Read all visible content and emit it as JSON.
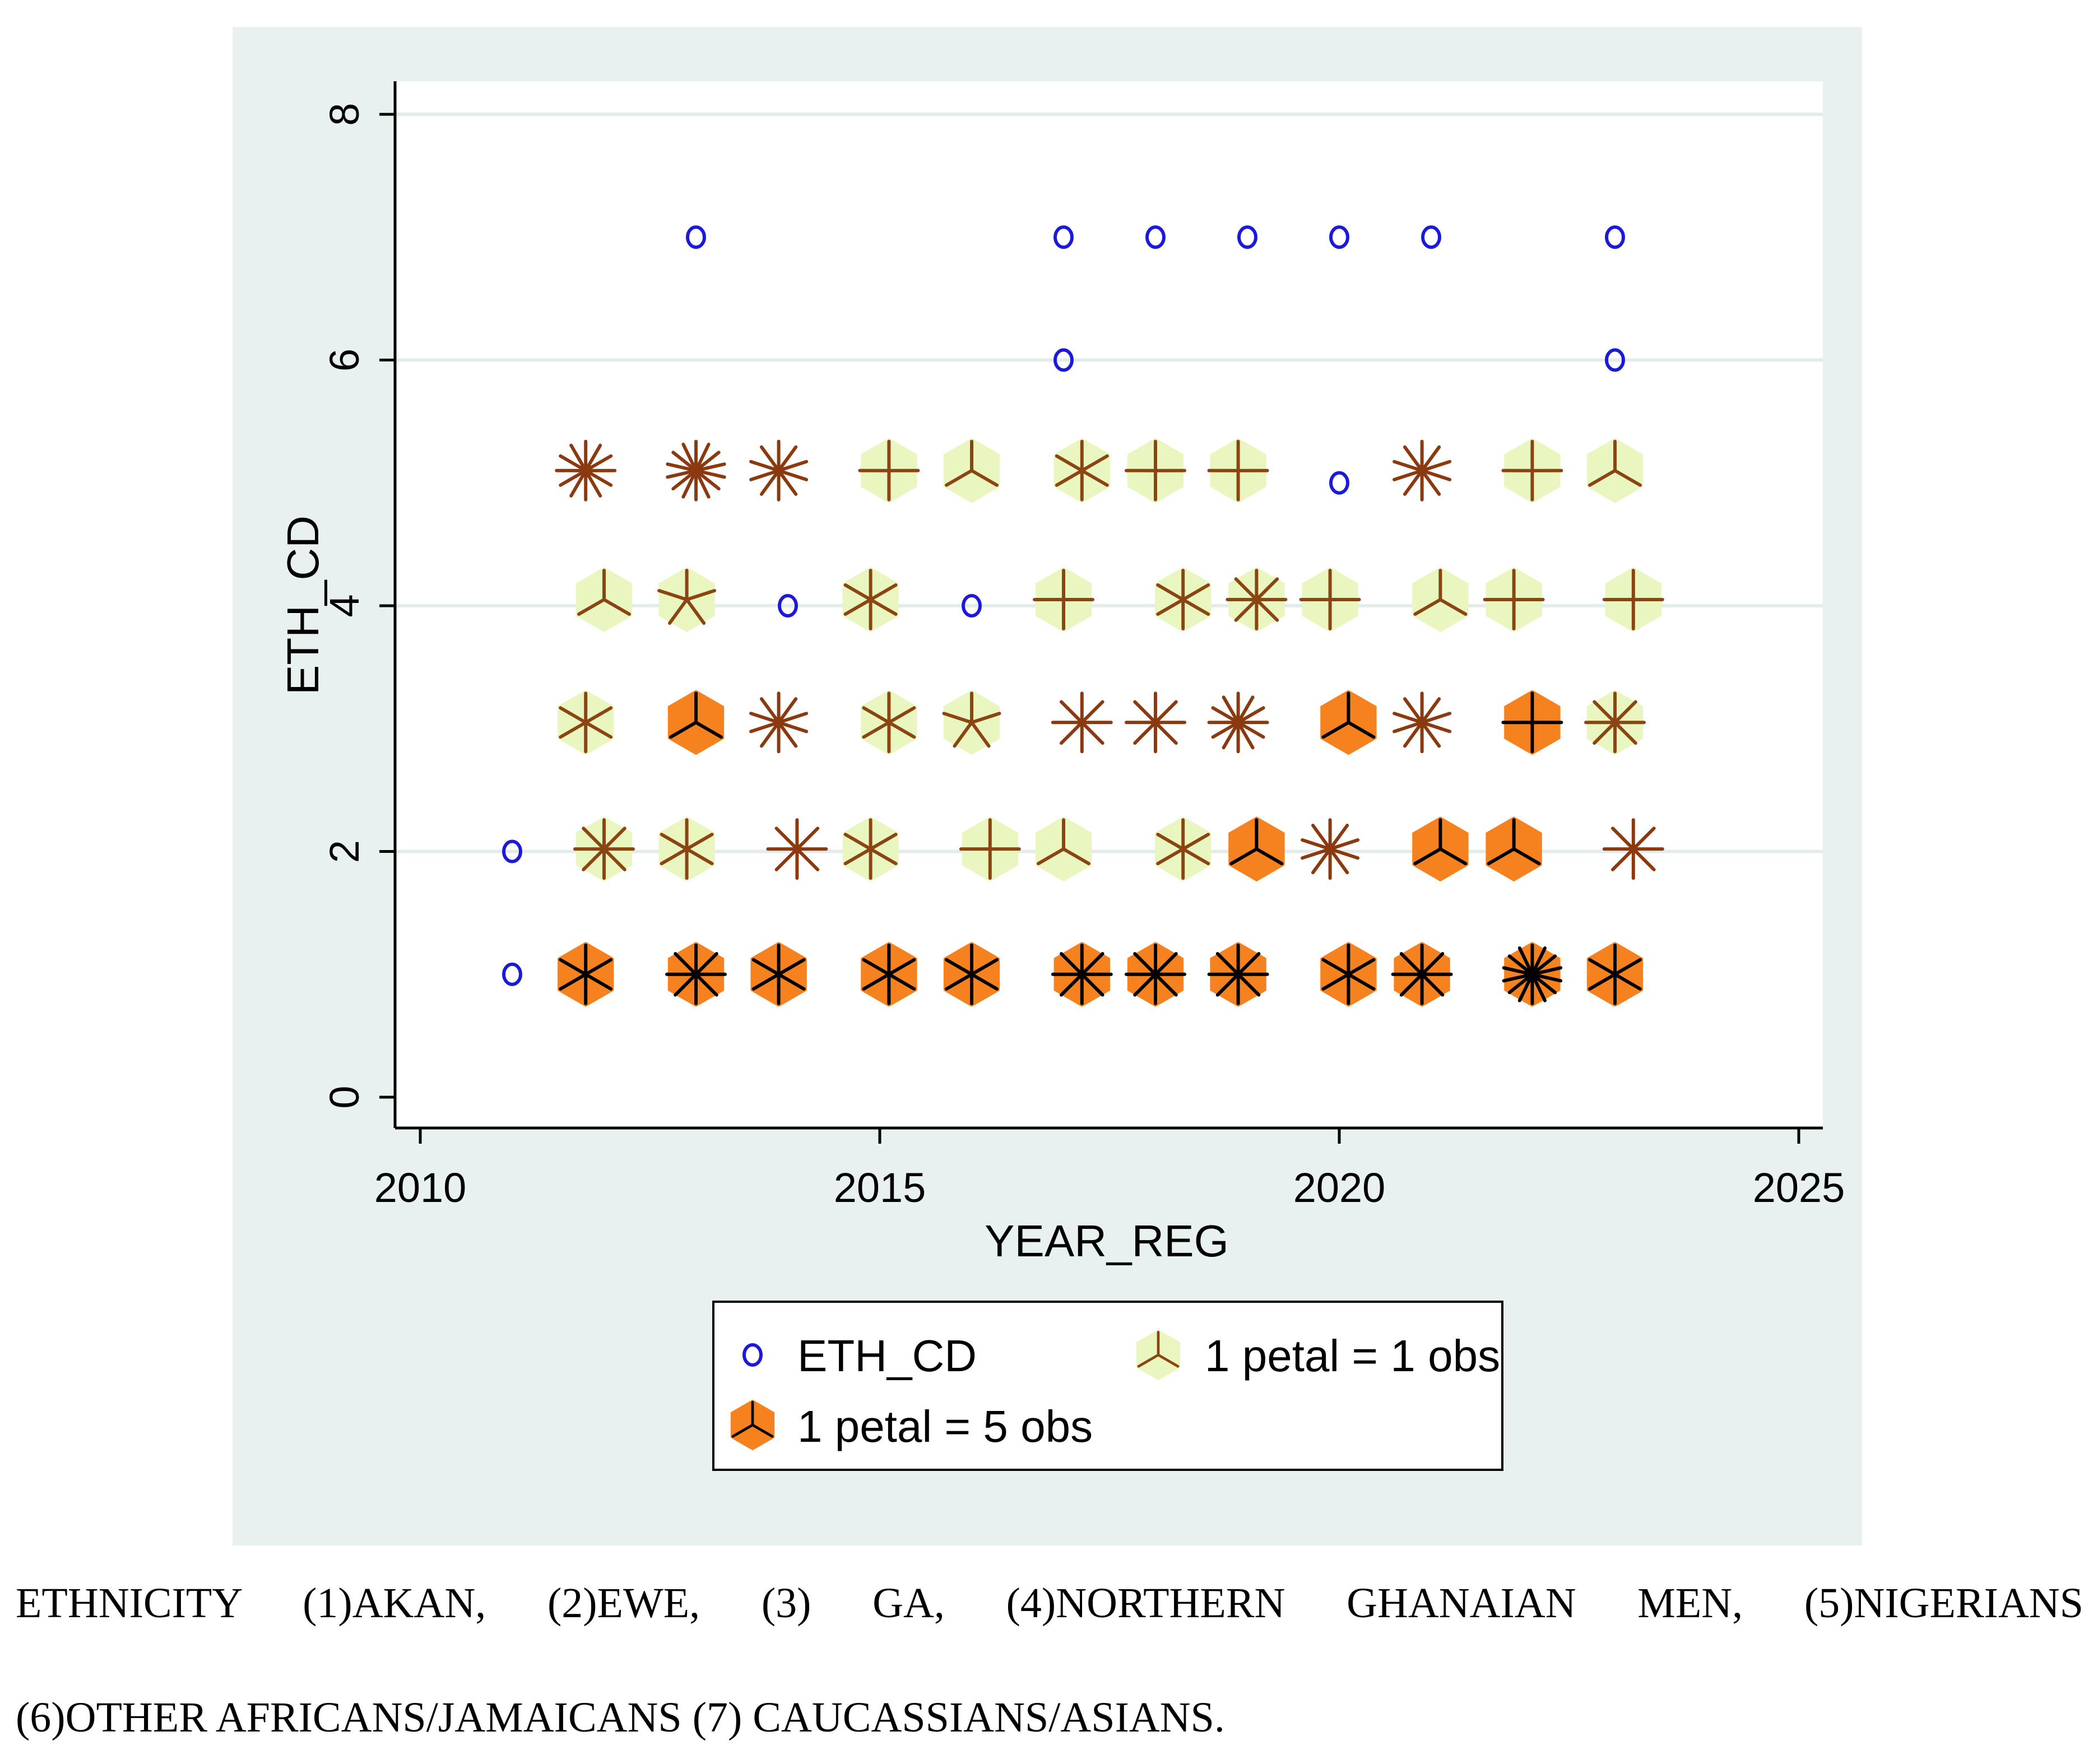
{
  "chart_data": {
    "type": "scatter",
    "subtype": "sunflower",
    "xlabel": "YEAR_REG",
    "ylabel": "ETH_CD",
    "xlim": [
      2010,
      2025
    ],
    "ylim": [
      0,
      8
    ],
    "x_ticks": [
      2010,
      2015,
      2020,
      2025
    ],
    "y_ticks": [
      0,
      2,
      4,
      6,
      8
    ],
    "grid": "horizontal",
    "legend": {
      "placement": "bottom",
      "entries": [
        {
          "key": "points",
          "label": "ETH_CD"
        },
        {
          "key": "light",
          "label": "1 petal = 1 obs"
        },
        {
          "key": "dark",
          "label": "1 petal = 5 obs"
        }
      ]
    },
    "colors": {
      "outer_bg": "#e8f0f0",
      "plot_bg": "#ffffff",
      "grid": "#e3ebeb",
      "point": "#1a1ad8",
      "light_fill": "#eaf6c0",
      "light_petal": "#8b4513",
      "dark_fill": "#f5821f",
      "dark_petal": "#000000",
      "star_petal": "#8b3a0f"
    },
    "points": [
      {
        "x": 2011,
        "y": 1
      },
      {
        "x": 2011,
        "y": 2
      },
      {
        "x": 2013,
        "y": 7
      },
      {
        "x": 2014,
        "y": 4
      },
      {
        "x": 2016,
        "y": 4
      },
      {
        "x": 2017,
        "y": 6
      },
      {
        "x": 2017,
        "y": 7
      },
      {
        "x": 2018,
        "y": 7
      },
      {
        "x": 2019,
        "y": 7
      },
      {
        "x": 2020,
        "y": 5
      },
      {
        "x": 2020,
        "y": 7
      },
      {
        "x": 2021,
        "y": 7
      },
      {
        "x": 2023,
        "y": 6
      },
      {
        "x": 2023,
        "y": 7
      }
    ],
    "sunflowers": [
      {
        "x": 2011.8,
        "y": 5.1,
        "type": "star",
        "petals": 12
      },
      {
        "x": 2013.0,
        "y": 5.1,
        "type": "star",
        "petals": 14
      },
      {
        "x": 2013.9,
        "y": 5.1,
        "type": "star",
        "petals": 10
      },
      {
        "x": 2015.1,
        "y": 5.1,
        "type": "light",
        "petals": 4
      },
      {
        "x": 2016.0,
        "y": 5.1,
        "type": "light",
        "petals": 3
      },
      {
        "x": 2017.2,
        "y": 5.1,
        "type": "light",
        "petals": 6
      },
      {
        "x": 2018.0,
        "y": 5.1,
        "type": "light",
        "petals": 4
      },
      {
        "x": 2018.9,
        "y": 5.1,
        "type": "light",
        "petals": 4
      },
      {
        "x": 2020.9,
        "y": 5.1,
        "type": "star",
        "petals": 10
      },
      {
        "x": 2022.1,
        "y": 5.1,
        "type": "light",
        "petals": 4
      },
      {
        "x": 2023.0,
        "y": 5.1,
        "type": "light",
        "petals": 3
      },
      {
        "x": 2012.0,
        "y": 4.05,
        "type": "light",
        "petals": 3
      },
      {
        "x": 2012.9,
        "y": 4.05,
        "type": "light",
        "petals": 5
      },
      {
        "x": 2014.9,
        "y": 4.05,
        "type": "light",
        "petals": 6
      },
      {
        "x": 2017.0,
        "y": 4.05,
        "type": "light",
        "petals": 4
      },
      {
        "x": 2018.3,
        "y": 4.05,
        "type": "light",
        "petals": 6
      },
      {
        "x": 2019.1,
        "y": 4.05,
        "type": "light",
        "petals": 8
      },
      {
        "x": 2019.9,
        "y": 4.05,
        "type": "light",
        "petals": 4
      },
      {
        "x": 2021.1,
        "y": 4.05,
        "type": "light",
        "petals": 3
      },
      {
        "x": 2021.9,
        "y": 4.05,
        "type": "light",
        "petals": 4
      },
      {
        "x": 2023.2,
        "y": 4.05,
        "type": "light",
        "petals": 4
      },
      {
        "x": 2011.8,
        "y": 3.05,
        "type": "light",
        "petals": 6
      },
      {
        "x": 2013.0,
        "y": 3.05,
        "type": "dark",
        "petals": 3
      },
      {
        "x": 2013.9,
        "y": 3.05,
        "type": "star",
        "petals": 10
      },
      {
        "x": 2015.1,
        "y": 3.05,
        "type": "light",
        "petals": 6
      },
      {
        "x": 2016.0,
        "y": 3.05,
        "type": "light",
        "petals": 5
      },
      {
        "x": 2017.2,
        "y": 3.05,
        "type": "star",
        "petals": 8
      },
      {
        "x": 2018.0,
        "y": 3.05,
        "type": "star",
        "petals": 8
      },
      {
        "x": 2018.9,
        "y": 3.05,
        "type": "star",
        "petals": 12
      },
      {
        "x": 2020.1,
        "y": 3.05,
        "type": "dark",
        "petals": 3
      },
      {
        "x": 2020.9,
        "y": 3.05,
        "type": "star",
        "petals": 10
      },
      {
        "x": 2022.1,
        "y": 3.05,
        "type": "dark",
        "petals": 4
      },
      {
        "x": 2023.0,
        "y": 3.05,
        "type": "light",
        "petals": 8
      },
      {
        "x": 2012.0,
        "y": 2.02,
        "type": "light",
        "petals": 8
      },
      {
        "x": 2012.9,
        "y": 2.02,
        "type": "light",
        "petals": 6
      },
      {
        "x": 2014.1,
        "y": 2.02,
        "type": "star",
        "petals": 8
      },
      {
        "x": 2014.9,
        "y": 2.02,
        "type": "light",
        "petals": 6
      },
      {
        "x": 2016.2,
        "y": 2.02,
        "type": "light",
        "petals": 4
      },
      {
        "x": 2017.0,
        "y": 2.02,
        "type": "light",
        "petals": 3
      },
      {
        "x": 2018.3,
        "y": 2.02,
        "type": "light",
        "petals": 6
      },
      {
        "x": 2019.1,
        "y": 2.02,
        "type": "dark",
        "petals": 3
      },
      {
        "x": 2019.9,
        "y": 2.02,
        "type": "star",
        "petals": 10
      },
      {
        "x": 2021.1,
        "y": 2.02,
        "type": "dark",
        "petals": 3
      },
      {
        "x": 2021.9,
        "y": 2.02,
        "type": "dark",
        "petals": 3
      },
      {
        "x": 2023.2,
        "y": 2.02,
        "type": "star",
        "petals": 8
      },
      {
        "x": 2011.8,
        "y": 1.0,
        "type": "dark",
        "petals": 6
      },
      {
        "x": 2013.0,
        "y": 1.0,
        "type": "dark",
        "petals": 8
      },
      {
        "x": 2013.9,
        "y": 1.0,
        "type": "dark",
        "petals": 6
      },
      {
        "x": 2015.1,
        "y": 1.0,
        "type": "dark",
        "petals": 6
      },
      {
        "x": 2016.0,
        "y": 1.0,
        "type": "dark",
        "petals": 6
      },
      {
        "x": 2017.2,
        "y": 1.0,
        "type": "dark",
        "petals": 8
      },
      {
        "x": 2018.0,
        "y": 1.0,
        "type": "dark",
        "petals": 8
      },
      {
        "x": 2018.9,
        "y": 1.0,
        "type": "dark",
        "petals": 8
      },
      {
        "x": 2020.1,
        "y": 1.0,
        "type": "dark",
        "petals": 6
      },
      {
        "x": 2020.9,
        "y": 1.0,
        "type": "dark",
        "petals": 8
      },
      {
        "x": 2022.1,
        "y": 1.0,
        "type": "dark",
        "petals": 14
      },
      {
        "x": 2023.0,
        "y": 1.0,
        "type": "dark",
        "petals": 6
      }
    ]
  },
  "caption": {
    "line1": "ETHNICITY (1)AKAN, (2)EWE, (3) GA, (4)NORTHERN GHANAIAN MEN, (5)NIGERIANS",
    "line2": "(6)OTHER AFRICANS/JAMAICANS (7) CAUCASSIANS/ASIANS."
  }
}
